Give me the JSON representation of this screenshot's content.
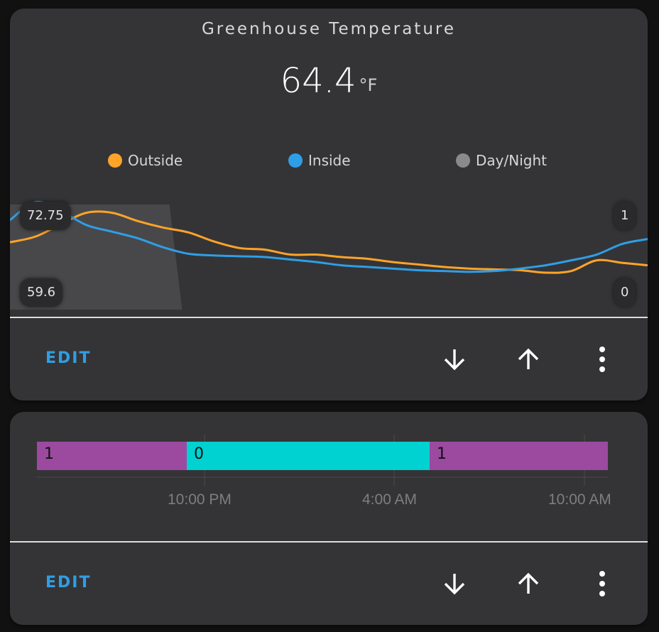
{
  "card1": {
    "title": "Greenhouse Temperature",
    "state_value": "64.4",
    "state_unit": "°F",
    "legend": [
      {
        "label": "Outside",
        "color": "#ffa329"
      },
      {
        "label": "Inside",
        "color": "#2f9ee6"
      },
      {
        "label": "Day/Night",
        "color": "#8a8a8a"
      }
    ],
    "axis": {
      "left_max": "72.75",
      "left_min": "59.6",
      "right_max": "1",
      "right_min": "0"
    }
  },
  "actions": {
    "edit_label": "EDIT"
  },
  "card2": {
    "segments": [
      {
        "label": "1",
        "color": "#9b4aa0"
      },
      {
        "label": "0",
        "color": "#00d1d1"
      },
      {
        "label": "1",
        "color": "#9b4aa0"
      }
    ],
    "ticks": [
      "10:00 PM",
      "4:00 AM",
      "10:00 AM"
    ]
  },
  "chart_data": {
    "type": "line",
    "title": "Greenhouse Temperature",
    "ylim": [
      59.6,
      72.75
    ],
    "y2lim": [
      0,
      1
    ],
    "series": [
      {
        "name": "Outside",
        "color": "#ffa329",
        "values": [
          [
            0,
            67.8
          ],
          [
            4,
            68.5
          ],
          [
            8,
            70.0
          ],
          [
            12,
            71.4
          ],
          [
            16,
            71.4
          ],
          [
            20,
            70.4
          ],
          [
            24,
            69.6
          ],
          [
            28,
            69.0
          ],
          [
            32,
            67.9
          ],
          [
            36,
            67.1
          ],
          [
            40,
            66.9
          ],
          [
            44,
            66.3
          ],
          [
            48,
            66.3
          ],
          [
            52,
            66.0
          ],
          [
            56,
            65.8
          ],
          [
            60,
            65.4
          ],
          [
            64,
            65.1
          ],
          [
            68,
            64.8
          ],
          [
            72,
            64.6
          ],
          [
            76,
            64.5
          ],
          [
            80,
            64.4
          ],
          [
            84,
            64.1
          ],
          [
            88,
            64.3
          ],
          [
            92,
            65.6
          ],
          [
            96,
            65.3
          ],
          [
            100,
            65.0
          ]
        ]
      },
      {
        "name": "Inside",
        "color": "#2f9ee6",
        "values": [
          [
            0,
            70.5
          ],
          [
            4,
            72.7
          ],
          [
            8,
            71.6
          ],
          [
            12,
            69.9
          ],
          [
            16,
            69.1
          ],
          [
            20,
            68.3
          ],
          [
            24,
            67.2
          ],
          [
            28,
            66.4
          ],
          [
            32,
            66.2
          ],
          [
            36,
            66.1
          ],
          [
            40,
            66.0
          ],
          [
            44,
            65.7
          ],
          [
            48,
            65.4
          ],
          [
            52,
            65.0
          ],
          [
            56,
            64.8
          ],
          [
            60,
            64.6
          ],
          [
            64,
            64.4
          ],
          [
            68,
            64.3
          ],
          [
            72,
            64.2
          ],
          [
            76,
            64.3
          ],
          [
            80,
            64.6
          ],
          [
            84,
            65.0
          ],
          [
            88,
            65.6
          ],
          [
            92,
            66.3
          ],
          [
            96,
            67.6
          ],
          [
            100,
            68.2
          ]
        ]
      },
      {
        "name": "Day/Night",
        "color": "#8a8a8a",
        "values": [
          [
            0,
            1
          ],
          [
            25,
            1
          ],
          [
            27,
            0
          ],
          [
            100,
            0
          ]
        ]
      }
    ]
  }
}
